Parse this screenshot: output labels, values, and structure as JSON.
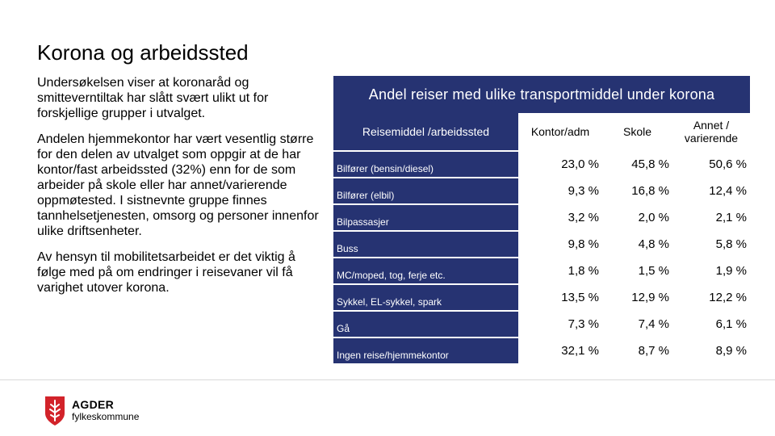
{
  "slide": {
    "title": "Korona og arbeidssted",
    "paragraphs": [
      "Undersøkelsen viser at koronaråd og smitteverntiltak har slått svært ulikt ut for forskjellige grupper i utvalget.",
      "Andelen hjemmekontor har vært vesentlig større for den delen av utvalget som oppgir at de har kontor/fast arbeidssted (32%) enn for de som arbeider på skole eller har annet/varierende oppmøtested. I sistnevnte gruppe finnes tannhelsetjenesten, omsorg og personer innenfor ulike driftsenheter.",
      "Av hensyn til mobilitetsarbeidet er det viktig å følge med på om endringer i reisevaner vil få varighet utover korona."
    ]
  },
  "table": {
    "title": "Andel reiser med ulike transportmiddel under korona",
    "columns": [
      "Reisemiddel /arbeidssted",
      "Kontor/adm",
      "Skole",
      "Annet / varierende"
    ],
    "rows": [
      {
        "label": "Bilfører (bensin/diesel)",
        "values": [
          "23,0 %",
          "45,8 %",
          "50,6 %"
        ]
      },
      {
        "label": "Bilfører (elbil)",
        "values": [
          "9,3 %",
          "16,8 %",
          "12,4 %"
        ]
      },
      {
        "label": "Bilpassasjer",
        "values": [
          "3,2 %",
          "2,0 %",
          "2,1 %"
        ]
      },
      {
        "label": "Buss",
        "values": [
          "9,8 %",
          "4,8 %",
          "5,8 %"
        ]
      },
      {
        "label": "MC/moped, tog, ferje etc.",
        "values": [
          "1,8 %",
          "1,5 %",
          "1,9 %"
        ]
      },
      {
        "label": "Sykkel, EL-sykkel, spark",
        "values": [
          "13,5 %",
          "12,9 %",
          "12,2 %"
        ]
      },
      {
        "label": "Gå",
        "values": [
          "7,3 %",
          "7,4 %",
          "6,1 %"
        ]
      },
      {
        "label": "Ingen reise/hjemmekontor",
        "values": [
          "32,1 %",
          "8,7 %",
          "8,9 %"
        ]
      }
    ]
  },
  "footer": {
    "logo_name": "AGDER",
    "logo_sub": "fylkeskommune",
    "logo_icon": "agder-coat-of-arms-icon"
  },
  "colors": {
    "table_header_bg": "#263372",
    "logo_red": "#d2232a"
  }
}
